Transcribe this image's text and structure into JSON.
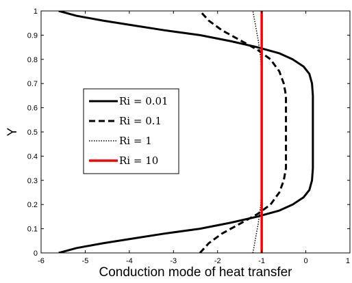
{
  "chart_data": {
    "type": "line",
    "title": "",
    "xlabel": "Conduction mode of heat transfer",
    "ylabel": "Y",
    "xlim": [
      -6,
      1
    ],
    "ylim": [
      0,
      1
    ],
    "xticks": [
      "-6",
      "-5",
      "-4",
      "-3",
      "-2",
      "-1",
      "0",
      "1"
    ],
    "yticks": [
      "0",
      "0.1",
      "0.2",
      "0.3",
      "0.4",
      "0.5",
      "0.6",
      "0.7",
      "0.8",
      "0.9",
      "1"
    ],
    "grid": false,
    "legend_position": "center-left",
    "series": [
      {
        "name": "Ri = 0.01",
        "style": "solid",
        "color": "#000000",
        "points": [
          [
            -5.6,
            0.0
          ],
          [
            -5.2,
            0.02
          ],
          [
            -4.6,
            0.04
          ],
          [
            -3.9,
            0.06
          ],
          [
            -3.2,
            0.08
          ],
          [
            -2.4,
            0.1
          ],
          [
            -1.7,
            0.125
          ],
          [
            -1.1,
            0.15
          ],
          [
            -0.6,
            0.175
          ],
          [
            -0.3,
            0.2
          ],
          [
            -0.05,
            0.23
          ],
          [
            0.08,
            0.26
          ],
          [
            0.14,
            0.3
          ],
          [
            0.16,
            0.35
          ],
          [
            0.16,
            0.5
          ],
          [
            0.16,
            0.65
          ],
          [
            0.14,
            0.7
          ],
          [
            0.08,
            0.74
          ],
          [
            -0.05,
            0.77
          ],
          [
            -0.3,
            0.8
          ],
          [
            -0.6,
            0.825
          ],
          [
            -1.1,
            0.85
          ],
          [
            -1.7,
            0.875
          ],
          [
            -2.4,
            0.9
          ],
          [
            -3.2,
            0.92
          ],
          [
            -3.9,
            0.94
          ],
          [
            -4.6,
            0.96
          ],
          [
            -5.2,
            0.98
          ],
          [
            -5.6,
            1.0
          ]
        ]
      },
      {
        "name": "Ri = 0.1",
        "style": "dashed",
        "color": "#000000",
        "points": [
          [
            -2.4,
            0.0
          ],
          [
            -2.2,
            0.04
          ],
          [
            -1.9,
            0.08
          ],
          [
            -1.5,
            0.12
          ],
          [
            -1.1,
            0.16
          ],
          [
            -0.8,
            0.2
          ],
          [
            -0.6,
            0.25
          ],
          [
            -0.5,
            0.3
          ],
          [
            -0.45,
            0.35
          ],
          [
            -0.45,
            0.5
          ],
          [
            -0.45,
            0.65
          ],
          [
            -0.5,
            0.7
          ],
          [
            -0.6,
            0.75
          ],
          [
            -0.8,
            0.8
          ],
          [
            -1.1,
            0.84
          ],
          [
            -1.5,
            0.88
          ],
          [
            -1.9,
            0.92
          ],
          [
            -2.2,
            0.96
          ],
          [
            -2.4,
            1.0
          ]
        ]
      },
      {
        "name": "Ri = 1",
        "style": "dotted",
        "color": "#000000",
        "points": [
          [
            -1.2,
            0.0
          ],
          [
            -1.15,
            0.05
          ],
          [
            -1.08,
            0.12
          ],
          [
            -1.02,
            0.2
          ],
          [
            -1.0,
            0.3
          ],
          [
            -1.0,
            0.7
          ],
          [
            -1.02,
            0.8
          ],
          [
            -1.08,
            0.88
          ],
          [
            -1.15,
            0.95
          ],
          [
            -1.2,
            1.0
          ]
        ]
      },
      {
        "name": "Ri = 10",
        "style": "solid",
        "color": "#ff0000",
        "points": [
          [
            -1.0,
            0.0
          ],
          [
            -1.0,
            1.0
          ]
        ]
      }
    ]
  }
}
